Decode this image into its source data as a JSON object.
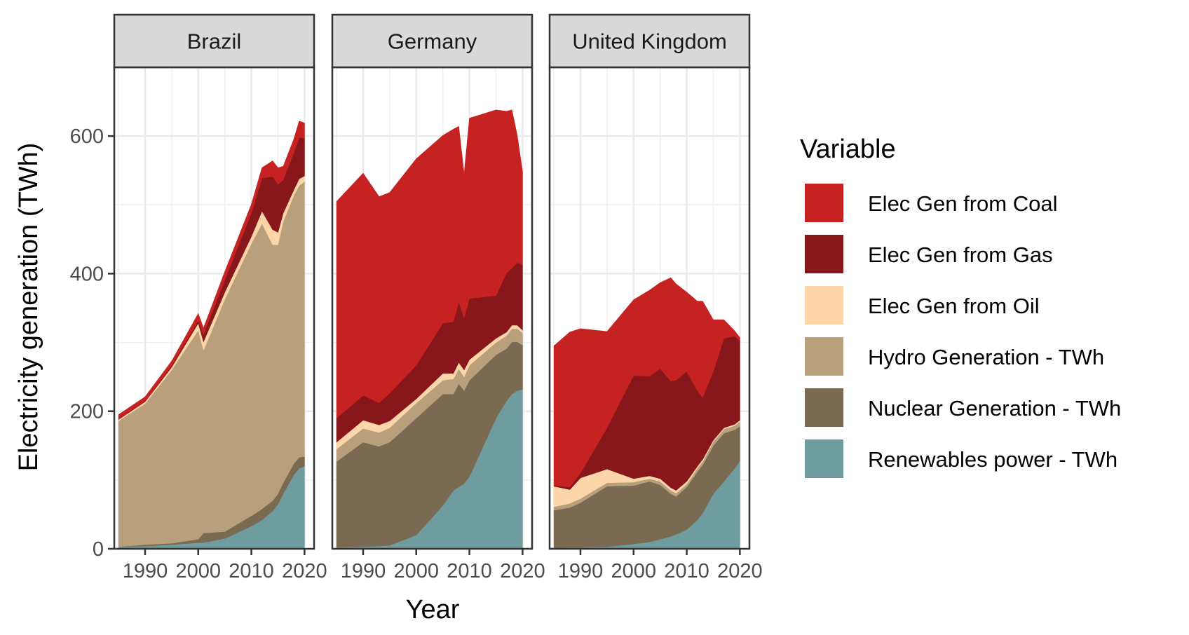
{
  "chart_data": {
    "type": "area",
    "stacked": true,
    "xlabel": "Year",
    "ylabel": "Electricity generation (TWh)",
    "ylim": [
      0,
      700
    ],
    "y_ticks": [
      0,
      200,
      400,
      600
    ],
    "x_ticks": [
      1990,
      2000,
      2010,
      2020
    ],
    "x_range": [
      1984.2,
      2021.8
    ],
    "grid": true,
    "legend": {
      "title": "Variable",
      "position": "right"
    },
    "series_meta": [
      {
        "name": "Elec Gen from Coal",
        "color": "#c62222"
      },
      {
        "name": "Elec Gen from Gas",
        "color": "#87171a"
      },
      {
        "name": "Elec Gen from Oil",
        "color": "#fcd6a8"
      },
      {
        "name": "Hydro Generation - TWh",
        "color": "#b99f7b"
      },
      {
        "name": "Nuclear Generation - TWh",
        "color": "#7a6a52"
      },
      {
        "name": "Renewables power - TWh",
        "color": "#6e9c9f"
      }
    ],
    "stack_order_bottom_to_top": [
      "Renewables power - TWh",
      "Nuclear Generation - TWh",
      "Hydro Generation - TWh",
      "Elec Gen from Oil",
      "Elec Gen from Gas",
      "Elec Gen from Coal"
    ],
    "panels": [
      {
        "title": "Brazil",
        "x": [
          1985,
          1990,
          1995,
          2000,
          2001,
          2005,
          2010,
          2012,
          2014,
          2015,
          2016,
          2018,
          2019,
          2020
        ],
        "series": {
          "Renewables power - TWh": [
            3,
            4,
            6,
            9,
            9,
            15,
            33,
            42,
            55,
            65,
            80,
            108,
            117,
            120
          ],
          "Nuclear Generation - TWh": [
            0,
            2,
            2,
            5,
            14,
            10,
            15,
            16,
            15,
            15,
            16,
            16,
            16,
            14
          ],
          "Hydro Generation - TWh": [
            183,
            205,
            252,
            304,
            266,
            338,
            396,
            415,
            372,
            362,
            380,
            390,
            395,
            400
          ],
          "Elec Gen from Oil": [
            2,
            3,
            4,
            10,
            12,
            10,
            10,
            18,
            22,
            18,
            12,
            8,
            10,
            8
          ],
          "Elec Gen from Gas": [
            1,
            1,
            2,
            4,
            10,
            18,
            34,
            48,
            77,
            70,
            48,
            54,
            60,
            55
          ],
          "Elec Gen from Coal": [
            6,
            6,
            7,
            10,
            10,
            12,
            13,
            15,
            23,
            24,
            20,
            20,
            24,
            22
          ]
        }
      },
      {
        "title": "Germany",
        "x": [
          1985,
          1990,
          1993,
          1995,
          2000,
          2005,
          2007,
          2008,
          2009,
          2010,
          2015,
          2017,
          2018,
          2019,
          2020
        ],
        "series": {
          "Renewables power - TWh": [
            2,
            3,
            4,
            5,
            20,
            63,
            85,
            90,
            95,
            105,
            190,
            215,
            225,
            230,
            232
          ],
          "Nuclear Generation - TWh": [
            125,
            152,
            145,
            150,
            170,
            162,
            140,
            150,
            135,
            140,
            92,
            76,
            76,
            71,
            64
          ],
          "Hydro Generation - TWh": [
            18,
            20,
            20,
            21,
            22,
            20,
            22,
            22,
            20,
            22,
            18,
            19,
            19,
            19,
            18
          ],
          "Elec Gen from Oil": [
            10,
            12,
            11,
            10,
            6,
            10,
            8,
            9,
            10,
            8,
            6,
            5,
            5,
            5,
            4
          ],
          "Elec Gen from Gas": [
            35,
            36,
            32,
            40,
            49,
            73,
            75,
            88,
            75,
            89,
            62,
            86,
            83,
            91,
            95
          ],
          "Elec Gen from Coal": [
            315,
            323,
            300,
            292,
            300,
            273,
            280,
            255,
            210,
            262,
            270,
            235,
            230,
            185,
            135
          ]
        }
      },
      {
        "title": "United Kingdom",
        "x": [
          1985,
          1988,
          1990,
          1995,
          2000,
          2003,
          2005,
          2007,
          2008,
          2010,
          2012,
          2013,
          2015,
          2017,
          2019,
          2020
        ],
        "series": {
          "Renewables power - TWh": [
            1,
            2,
            2,
            3,
            7,
            10,
            14,
            18,
            21,
            28,
            42,
            52,
            80,
            98,
            117,
            128
          ],
          "Nuclear Generation - TWh": [
            55,
            58,
            65,
            88,
            85,
            88,
            79,
            62,
            55,
            62,
            70,
            70,
            70,
            70,
            56,
            50
          ],
          "Hydro Generation - TWh": [
            5,
            6,
            6,
            5,
            5,
            4,
            5,
            5,
            5,
            4,
            5,
            5,
            6,
            6,
            6,
            7
          ],
          "Elec Gen from Oil": [
            30,
            20,
            30,
            20,
            5,
            4,
            4,
            4,
            4,
            4,
            3,
            3,
            2,
            2,
            2,
            2
          ],
          "Elec Gen from Gas": [
            1,
            4,
            7,
            60,
            150,
            145,
            160,
            155,
            160,
            160,
            110,
            90,
            100,
            130,
            128,
            115
          ],
          "Elec Gen from Coal": [
            203,
            225,
            210,
            140,
            110,
            125,
            125,
            150,
            140,
            115,
            130,
            140,
            75,
            27,
            8,
            5
          ]
        }
      }
    ]
  }
}
